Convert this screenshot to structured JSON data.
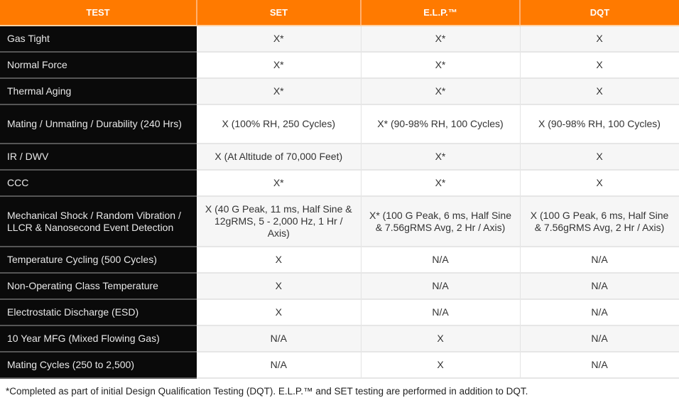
{
  "headers": [
    "TEST",
    "SET",
    "E.L.P.™",
    "DQT"
  ],
  "rows": [
    {
      "test": "Gas Tight",
      "set": "X*",
      "elp": "X*",
      "dqt": "X",
      "h": 37
    },
    {
      "test": "Normal Force",
      "set": "X*",
      "elp": "X*",
      "dqt": "X",
      "h": 37
    },
    {
      "test": "Thermal Aging",
      "set": "X*",
      "elp": "X*",
      "dqt": "X",
      "h": 37
    },
    {
      "test": "Mating / Unmating / Durability (240 Hrs)",
      "set": "X (100% RH, 250 Cycles)",
      "elp": "X* (90-98% RH, 100 Cycles)",
      "dqt": "X (90-98% RH, 100 Cycles)",
      "h": 55
    },
    {
      "test": "IR / DWV",
      "set": "X (At Altitude of 70,000 Feet)",
      "elp": "X*",
      "dqt": "X",
      "h": 37
    },
    {
      "test": "CCC",
      "set": "X*",
      "elp": "X*",
      "dqt": "X",
      "h": 37
    },
    {
      "test": "Mechanical Shock / Random Vibration / LLCR & Nanosecond Event Detection",
      "set": "X (40 G Peak, 11 ms, Half Sine & 12gRMS, 5 - 2,000 Hz, 1 Hr / Axis)",
      "elp": "X* (100 G Peak, 6 ms, Half Sine & 7.56gRMS Avg, 2 Hr / Axis)",
      "dqt": "X (100 G Peak, 6 ms, Half Sine & 7.56gRMS Avg, 2 Hr / Axis)",
      "h": 71
    },
    {
      "test": "Temperature Cycling (500 Cycles)",
      "set": "X",
      "elp": "N/A",
      "dqt": "N/A",
      "h": 37
    },
    {
      "test": "Non-Operating Class Temperature",
      "set": "X",
      "elp": "N/A",
      "dqt": "N/A",
      "h": 37
    },
    {
      "test": "Electrostatic Discharge (ESD)",
      "set": "X",
      "elp": "N/A",
      "dqt": "N/A",
      "h": 37
    },
    {
      "test": "10 Year MFG (Mixed Flowing Gas)",
      "set": "N/A",
      "elp": "X",
      "dqt": "N/A",
      "h": 37
    },
    {
      "test": "Mating Cycles (250 to 2,500)",
      "set": "N/A",
      "elp": "X",
      "dqt": "N/A",
      "h": 37
    }
  ],
  "footnote": "*Completed as part of initial Design Qualification Testing (DQT). E.L.P.™ and SET testing are performed in addition to DQT.",
  "colors": {
    "header": "#ff7a00",
    "test_column": "#0a0a0a"
  }
}
